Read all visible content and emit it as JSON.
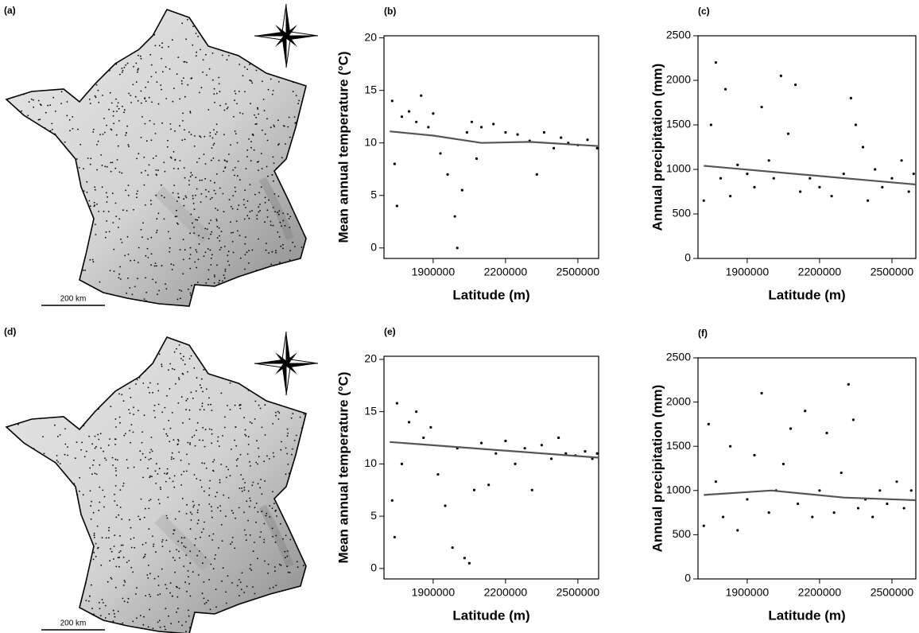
{
  "maps": [
    {
      "label": "(a)",
      "scale": "200 km"
    },
    {
      "label": "(d)",
      "scale": "200 km"
    }
  ],
  "chart_data": [
    {
      "type": "scatter",
      "label": "(b)",
      "x_label": "Latitude (m)",
      "y_label": "Mean annual temperature (°C)",
      "xlim": [
        1696000,
        2586000
      ],
      "ylim": [
        -1,
        20.2
      ],
      "xticks": [
        1900000,
        2200000,
        2500000
      ],
      "yticks": [
        0,
        5,
        10,
        15,
        20
      ],
      "color": "#000000",
      "trend_color": "#555555",
      "x": [
        1730000,
        1740000,
        1750000,
        1770000,
        1800000,
        1830000,
        1850000,
        1880000,
        1900000,
        1930000,
        1960000,
        1990000,
        2000000,
        2020000,
        2040000,
        2060000,
        2080000,
        2100000,
        2150000,
        2200000,
        2250000,
        2300000,
        2330000,
        2360000,
        2400000,
        2430000,
        2460000,
        2500000,
        2540000,
        2580000
      ],
      "values": [
        14.0,
        8.0,
        4.0,
        12.5,
        13.0,
        12.0,
        14.5,
        11.5,
        12.8,
        9.0,
        7.0,
        3.0,
        0.0,
        5.5,
        11.0,
        12.0,
        8.5,
        11.5,
        11.8,
        11.0,
        10.8,
        10.2,
        7.0,
        11.0,
        9.5,
        10.5,
        10.0,
        9.8,
        10.3,
        9.5
      ],
      "trend": {
        "x": [
          1720000,
          1900000,
          2100000,
          2300000,
          2586000
        ],
        "values": [
          11.1,
          10.7,
          10.0,
          10.1,
          9.7
        ]
      }
    },
    {
      "type": "scatter",
      "label": "(c)",
      "x_label": "Latitude (m)",
      "y_label": "Annual precipitation (mm)",
      "xlim": [
        1696000,
        2599000
      ],
      "ylim": [
        0,
        2500
      ],
      "xticks": [
        1900000,
        2200000,
        2500000
      ],
      "yticks": [
        0,
        500,
        1000,
        1500,
        2000,
        2500
      ],
      "color": "#000000",
      "trend_color": "#555555",
      "x": [
        1720000,
        1750000,
        1770000,
        1790000,
        1810000,
        1830000,
        1860000,
        1900000,
        1930000,
        1960000,
        1990000,
        2010000,
        2040000,
        2070000,
        2100000,
        2120000,
        2160000,
        2200000,
        2250000,
        2300000,
        2330000,
        2350000,
        2380000,
        2400000,
        2430000,
        2460000,
        2500000,
        2540000,
        2570000,
        2590000
      ],
      "values": [
        650,
        1500,
        2200,
        900,
        1900,
        700,
        1050,
        950,
        800,
        1700,
        1100,
        900,
        2050,
        1400,
        1950,
        750,
        900,
        800,
        700,
        950,
        1800,
        1500,
        1250,
        650,
        1000,
        800,
        900,
        1100,
        750,
        950
      ],
      "trend": {
        "x": [
          1720000,
          2599000
        ],
        "values": [
          1040,
          830
        ]
      }
    },
    {
      "type": "scatter",
      "label": "(e)",
      "x_label": "Latitude (m)",
      "y_label": "Mean annual temperature (°C)",
      "xlim": [
        1696000,
        2586000
      ],
      "ylim": [
        -1,
        20.3
      ],
      "xticks": [
        1900000,
        2200000,
        2500000
      ],
      "yticks": [
        0,
        5,
        10,
        15,
        20
      ],
      "color": "#000000",
      "trend_color": "#555555",
      "x": [
        1730000,
        1740000,
        1750000,
        1770000,
        1800000,
        1830000,
        1860000,
        1890000,
        1920000,
        1950000,
        1980000,
        2000000,
        2030000,
        2050000,
        2070000,
        2100000,
        2130000,
        2160000,
        2200000,
        2240000,
        2280000,
        2310000,
        2350000,
        2390000,
        2420000,
        2450000,
        2490000,
        2530000,
        2560000,
        2580000
      ],
      "values": [
        6.5,
        3.0,
        15.8,
        10.0,
        14.0,
        15.0,
        12.5,
        13.5,
        9.0,
        6.0,
        2.0,
        11.5,
        1.0,
        0.5,
        7.5,
        12.0,
        8.0,
        11.0,
        12.2,
        10.0,
        11.5,
        7.5,
        11.8,
        10.5,
        12.5,
        11.0,
        10.8,
        11.2,
        10.5,
        11.0
      ],
      "trend": {
        "x": [
          1720000,
          2586000
        ],
        "values": [
          12.1,
          10.6
        ]
      }
    },
    {
      "type": "scatter",
      "label": "(f)",
      "x_label": "Latitude (m)",
      "y_label": "Annual precipitation (mm)",
      "xlim": [
        1696000,
        2599000
      ],
      "ylim": [
        0,
        2500
      ],
      "xticks": [
        1900000,
        2200000,
        2500000
      ],
      "yticks": [
        0,
        500,
        1000,
        1500,
        2000,
        2500
      ],
      "color": "#000000",
      "trend_color": "#555555",
      "x": [
        1720000,
        1740000,
        1770000,
        1800000,
        1830000,
        1860000,
        1900000,
        1930000,
        1960000,
        1990000,
        2020000,
        2050000,
        2080000,
        2110000,
        2140000,
        2170000,
        2200000,
        2230000,
        2260000,
        2290000,
        2320000,
        2340000,
        2360000,
        2390000,
        2420000,
        2450000,
        2480000,
        2520000,
        2550000,
        2580000
      ],
      "values": [
        600,
        1750,
        1100,
        700,
        1500,
        550,
        900,
        1400,
        2100,
        750,
        1000,
        1300,
        1700,
        850,
        1900,
        700,
        1000,
        1650,
        750,
        1200,
        2200,
        1800,
        800,
        900,
        700,
        1000,
        850,
        1100,
        800,
        1000
      ],
      "trend": {
        "x": [
          1720000,
          2000000,
          2300000,
          2599000
        ],
        "values": [
          950,
          1000,
          920,
          890
        ]
      }
    }
  ]
}
